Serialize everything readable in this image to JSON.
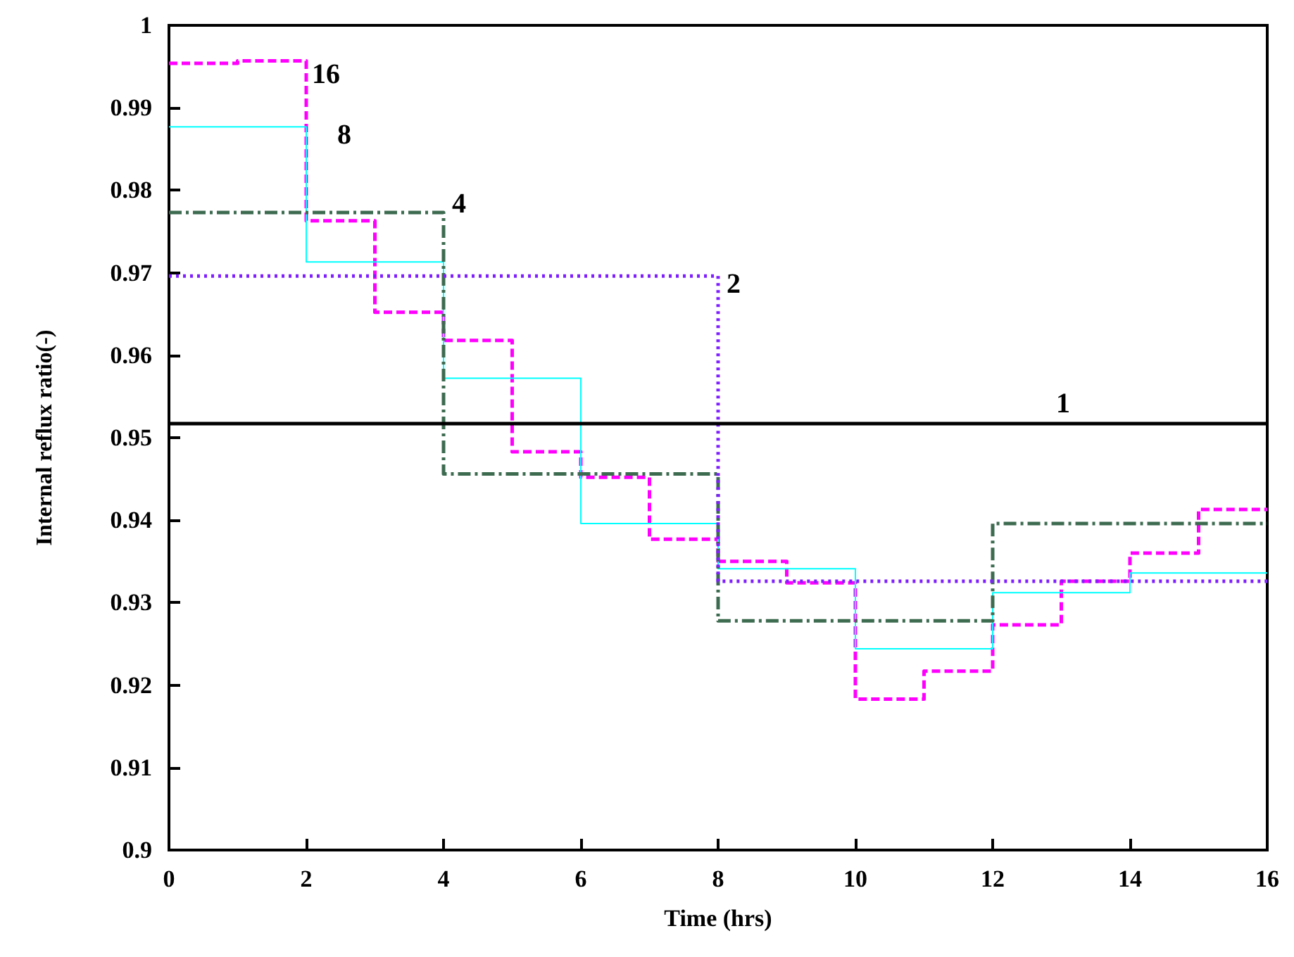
{
  "chart_data": {
    "type": "step",
    "xlabel": "Time (hrs)",
    "ylabel": "Internal reflux ratio(-)",
    "xlim": [
      0,
      16
    ],
    "xticks": [
      0,
      2,
      4,
      6,
      8,
      10,
      12,
      14,
      16
    ],
    "ylim": [
      0.9,
      1
    ],
    "yticks": [
      0.9,
      0.91,
      0.92,
      0.93,
      0.94,
      0.95,
      0.96,
      0.97,
      0.98,
      0.99,
      1
    ],
    "grid": false,
    "series": [
      {
        "name": "1",
        "color": "#000000",
        "line_style": "solid",
        "x": [
          0,
          16
        ],
        "values": [
          0.9517,
          0.9517
        ]
      },
      {
        "name": "2",
        "color": "#7f1fff",
        "line_style": "dotted",
        "x": [
          0,
          8,
          16
        ],
        "values": [
          0.9696,
          0.9326,
          0.9326
        ]
      },
      {
        "name": "4",
        "color": "#3d6b50",
        "line_style": "dashdot",
        "x": [
          0,
          4,
          8,
          12,
          16
        ],
        "values": [
          0.9773,
          0.9456,
          0.9278,
          0.9396,
          0.9396
        ]
      },
      {
        "name": "8",
        "color": "#00ffff",
        "line_style": "solid",
        "x": [
          0,
          2,
          4,
          6,
          8,
          10,
          12,
          14,
          16
        ],
        "values": [
          0.9877,
          0.9713,
          0.9572,
          0.9396,
          0.9341,
          0.9244,
          0.9312,
          0.9336,
          0.9336
        ]
      },
      {
        "name": "16",
        "color": "#ff00ff",
        "line_style": "dashed",
        "x": [
          0,
          1,
          2,
          3,
          4,
          5,
          6,
          7,
          8,
          9,
          10,
          11,
          12,
          13,
          14,
          15,
          16
        ],
        "values": [
          0.9954,
          0.9957,
          0.9763,
          0.9652,
          0.9618,
          0.9483,
          0.9452,
          0.9377,
          0.935,
          0.9324,
          0.9183,
          0.9217,
          0.9273,
          0.9326,
          0.936,
          0.9413,
          0.9413
        ]
      }
    ]
  }
}
